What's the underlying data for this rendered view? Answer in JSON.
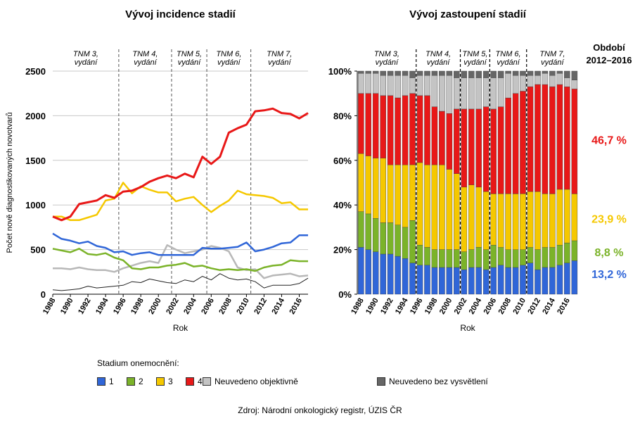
{
  "chart_data": [
    {
      "type": "line",
      "title": "Vývoj incidence stadií",
      "xlabel": "Rok",
      "ylabel": "Počet nově diagnostikovaných novotvarů",
      "ylim": [
        0,
        2500
      ],
      "yticks": [
        "0",
        "500",
        "1000",
        "1500",
        "2000",
        "2500"
      ],
      "x": [
        1988,
        1989,
        1990,
        1991,
        1992,
        1993,
        1994,
        1995,
        1996,
        1997,
        1998,
        1999,
        2000,
        2001,
        2002,
        2003,
        2004,
        2005,
        2006,
        2007,
        2008,
        2009,
        2010,
        2011,
        2012,
        2013,
        2014,
        2015,
        2016,
        2017
      ],
      "xtick_labels": [
        "1988",
        "1990",
        "1992",
        "1994",
        "1996",
        "1998",
        "2000",
        "2002",
        "2004",
        "2006",
        "2008",
        "2010",
        "2012",
        "2014",
        "2016"
      ],
      "tnm_periods": [
        {
          "line1": "TNM 3,",
          "line2": "vydání",
          "start": 1988,
          "end": 1995.5
        },
        {
          "line1": "TNM 4,",
          "line2": "vydání",
          "start": 1995.5,
          "end": 2001.5
        },
        {
          "line1": "TNM 5,",
          "line2": "vydání",
          "start": 2001.5,
          "end": 2005.5
        },
        {
          "line1": "TNM 6,",
          "line2": "vydání",
          "start": 2005.5,
          "end": 2010.5
        },
        {
          "line1": "TNM 7,",
          "line2": "vydání",
          "start": 2010.5,
          "end": 2017
        }
      ],
      "series": [
        {
          "name": "4",
          "color": "#e81818",
          "width": 3,
          "values": [
            870,
            830,
            870,
            1010,
            1030,
            1050,
            1110,
            1080,
            1150,
            1160,
            1200,
            1260,
            1300,
            1330,
            1300,
            1350,
            1310,
            1540,
            1460,
            1540,
            1810,
            1860,
            1900,
            2050,
            2060,
            2080,
            2030,
            2020,
            1970,
            2030
          ]
        },
        {
          "name": "3",
          "color": "#f5c800",
          "width": 2.5,
          "values": [
            870,
            870,
            830,
            830,
            860,
            890,
            1050,
            1070,
            1250,
            1130,
            1210,
            1170,
            1140,
            1140,
            1040,
            1070,
            1090,
            1000,
            920,
            990,
            1050,
            1160,
            1120,
            1110,
            1100,
            1080,
            1020,
            1030,
            950,
            950
          ]
        },
        {
          "name": "1",
          "color": "#3066d8",
          "width": 2.5,
          "values": [
            680,
            620,
            600,
            570,
            590,
            540,
            520,
            470,
            480,
            440,
            460,
            470,
            440,
            440,
            440,
            440,
            440,
            520,
            510,
            510,
            520,
            530,
            580,
            480,
            500,
            530,
            570,
            580,
            660,
            660
          ]
        },
        {
          "name": "2",
          "color": "#7bb329",
          "width": 2.5,
          "values": [
            510,
            490,
            470,
            510,
            450,
            440,
            460,
            410,
            380,
            290,
            280,
            300,
            300,
            320,
            330,
            350,
            310,
            320,
            290,
            270,
            280,
            270,
            280,
            260,
            300,
            320,
            330,
            380,
            370,
            370
          ]
        },
        {
          "name": "Neuvedeno objektivně",
          "color": "#b8b8b8",
          "width": 2.5,
          "values": [
            290,
            290,
            280,
            300,
            280,
            270,
            270,
            250,
            290,
            320,
            350,
            370,
            350,
            550,
            500,
            460,
            480,
            500,
            540,
            520,
            480,
            300,
            270,
            280,
            180,
            210,
            220,
            230,
            200,
            210
          ]
        },
        {
          "name": "Neuvedeno bez vysvětlení",
          "color": "#222222",
          "width": 1,
          "values": [
            50,
            40,
            50,
            60,
            90,
            70,
            80,
            90,
            100,
            140,
            130,
            170,
            150,
            130,
            120,
            160,
            140,
            200,
            160,
            230,
            180,
            160,
            170,
            140,
            70,
            100,
            100,
            100,
            120,
            180
          ]
        }
      ]
    },
    {
      "type": "bar",
      "stacked": true,
      "title": "Vývoj zastoupení stadií",
      "xlabel": "Rok",
      "ylim": [
        0,
        100
      ],
      "yticks": [
        "0%",
        "20%",
        "40%",
        "60%",
        "80%",
        "100%"
      ],
      "categories": [
        1988,
        1989,
        1990,
        1991,
        1992,
        1993,
        1994,
        1995,
        1996,
        1997,
        1998,
        1999,
        2000,
        2001,
        2002,
        2003,
        2004,
        2005,
        2006,
        2007,
        2008,
        2009,
        2010,
        2011,
        2012,
        2013,
        2014,
        2015,
        2016,
        2017
      ],
      "xtick_labels": [
        "1988",
        "1990",
        "1992",
        "1994",
        "1996",
        "1998",
        "2000",
        "2002",
        "2004",
        "2006",
        "2008",
        "2010",
        "2012",
        "2014",
        "2016"
      ],
      "divider_after_index": [
        7,
        13,
        17,
        22
      ],
      "series": [
        {
          "name": "1",
          "color": "#3066d8",
          "values": [
            21,
            20,
            19,
            18,
            18,
            17,
            16,
            14,
            13,
            13,
            12,
            12,
            12,
            12,
            11,
            12,
            12,
            11,
            12,
            13,
            12,
            12,
            13,
            14,
            11,
            12,
            12,
            13,
            14,
            15
          ]
        },
        {
          "name": "2",
          "color": "#7bb329",
          "values": [
            16,
            16,
            15,
            14,
            14,
            14,
            14,
            19,
            9,
            8,
            8,
            8,
            8,
            8,
            8,
            8,
            9,
            9,
            10,
            8,
            8,
            8,
            7,
            7,
            9,
            9,
            9,
            9,
            9,
            9
          ]
        },
        {
          "name": "3",
          "color": "#f5c800",
          "values": [
            26,
            26,
            27,
            29,
            26,
            27,
            28,
            25,
            37,
            37,
            38,
            38,
            36,
            34,
            29,
            29,
            27,
            26,
            23,
            24,
            25,
            25,
            25,
            25,
            26,
            24,
            24,
            25,
            24,
            21
          ]
        },
        {
          "name": "4",
          "color": "#e81818",
          "values": [
            27,
            28,
            29,
            28,
            31,
            30,
            31,
            32,
            30,
            31,
            26,
            24,
            25,
            29,
            35,
            34,
            35,
            38,
            38,
            39,
            43,
            45,
            46,
            47,
            48,
            49,
            48,
            47,
            46,
            47
          ]
        },
        {
          "name": "Neuvedeno objektivně",
          "color": "#c4c4c4",
          "values": [
            9,
            9,
            9,
            9,
            9,
            10,
            9,
            7,
            9,
            9,
            14,
            16,
            17,
            14,
            14,
            14,
            14,
            13,
            14,
            13,
            11,
            8,
            7,
            5,
            4,
            5,
            5,
            5,
            4,
            4
          ]
        },
        {
          "name": "Neuvedeno bez vysvětlení",
          "color": "#666666",
          "values": [
            1,
            1,
            1,
            2,
            2,
            2,
            2,
            3,
            2,
            2,
            2,
            2,
            2,
            3,
            3,
            3,
            3,
            3,
            3,
            3,
            1,
            2,
            2,
            2,
            2,
            1,
            2,
            1,
            3,
            4
          ]
        }
      ]
    }
  ],
  "period_summary": {
    "title_line1": "Období",
    "title_line2": "2012–2016",
    "items": [
      {
        "label": "46,7 %",
        "color": "#e81818",
        "value": 46.7
      },
      {
        "label": "23,9 %",
        "color": "#f5c800",
        "value": 23.9
      },
      {
        "label": "8,8 %",
        "color": "#7bb329",
        "value": 8.8
      },
      {
        "label": "13,2 %",
        "color": "#3066d8",
        "value": 13.2
      }
    ]
  },
  "legend": {
    "title": "Stadium onemocnění:",
    "items": [
      {
        "label": "1",
        "color": "#3066d8"
      },
      {
        "label": "2",
        "color": "#7bb329"
      },
      {
        "label": "3",
        "color": "#f5c800"
      },
      {
        "label": "4",
        "color": "#e81818"
      },
      {
        "label": "Neuvedeno objektivně",
        "color": "#c4c4c4"
      },
      {
        "label": "Neuvedeno bez vysvětlení",
        "color": "#666666"
      }
    ]
  },
  "source": "Zdroj: Národní onkologický registr, ÚZIS ČR"
}
